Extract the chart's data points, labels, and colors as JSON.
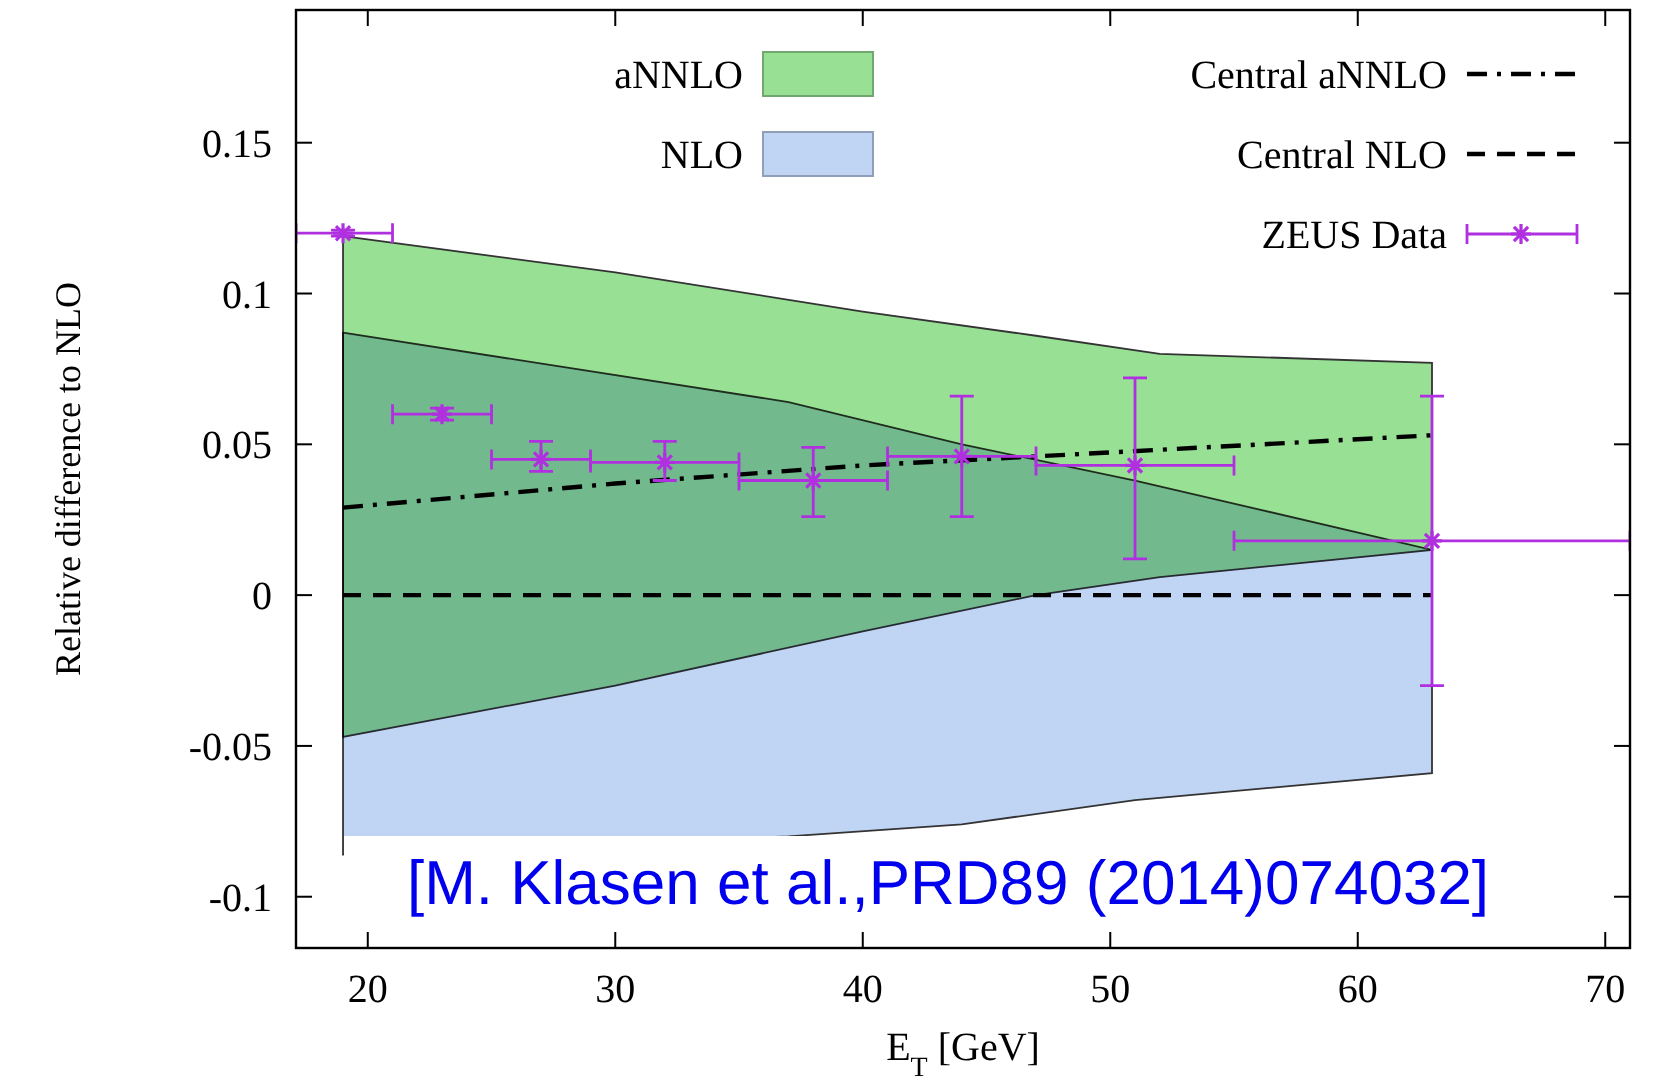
{
  "chart_data": {
    "type": "line",
    "xlabel": "E$_{T}$ [GeV]",
    "ylabel": "Relative difference to NLO",
    "xlim": [
      17.1,
      71
    ],
    "xticks": [
      20,
      30,
      40,
      50,
      60,
      70
    ],
    "ylim": [
      -0.117,
      0.194
    ],
    "yticks": [
      -0.1,
      -0.05,
      0,
      0.05,
      0.1,
      0.15
    ],
    "grid": false,
    "legend": "top",
    "annotations": [
      "[M. Klasen et al.,PRD89 (2014)074032]"
    ],
    "series": [
      {
        "name": "aNNLO",
        "type": "area",
        "color": "#98e094",
        "x": [
          19,
          30,
          40,
          47,
          52,
          63
        ],
        "values": [
          null,
          null,
          null,
          null,
          null,
          null
        ],
        "lower": [
          -0.047,
          -0.03,
          -0.012,
          0.0,
          0.006,
          0.015
        ],
        "upper": [
          0.119,
          0.107,
          0.094,
          0.086,
          0.08,
          0.077
        ]
      },
      {
        "name": "NLO",
        "type": "area",
        "color": "#c0d4f4",
        "x": [
          19,
          37,
          44,
          51,
          63
        ],
        "values": [
          null,
          null,
          null,
          null,
          null
        ],
        "lower": [
          -0.086,
          -0.08,
          -0.076,
          -0.068,
          -0.059
        ],
        "upper": [
          0.087,
          0.064,
          0.05,
          0.038,
          0.015
        ]
      },
      {
        "name": "Central aNNLO",
        "color": "#000000",
        "line_style": "dashdot",
        "x": [
          19,
          30,
          40,
          47,
          63
        ],
        "values": [
          0.029,
          0.037,
          0.043,
          0.046,
          0.053
        ]
      },
      {
        "name": "Central NLO",
        "color": "#000000",
        "line_style": "dashed",
        "x": [
          19,
          63
        ],
        "values": [
          0,
          0
        ]
      },
      {
        "name": "ZEUS Data",
        "type": "scatter",
        "color": "#b030e0",
        "marker": "cross",
        "x": [
          19,
          23,
          27,
          32,
          38,
          44,
          51,
          63
        ],
        "values": [
          0.12,
          0.06,
          0.045,
          0.044,
          0.038,
          0.046,
          0.043,
          0.018
        ],
        "errors": [
          [
            0.119,
            0.121
          ],
          [
            0.058,
            0.062
          ],
          [
            0.041,
            0.051
          ],
          [
            0.038,
            0.051
          ],
          [
            0.026,
            0.049
          ],
          [
            0.026,
            0.066
          ],
          [
            0.012,
            0.072
          ],
          [
            -0.03,
            0.066
          ]
        ],
        "xerrors": [
          [
            17.1,
            21
          ],
          [
            21,
            25
          ],
          [
            25,
            29
          ],
          [
            29,
            35
          ],
          [
            35,
            41
          ],
          [
            41,
            47
          ],
          [
            47,
            55
          ],
          [
            55,
            71
          ]
        ]
      }
    ]
  }
}
